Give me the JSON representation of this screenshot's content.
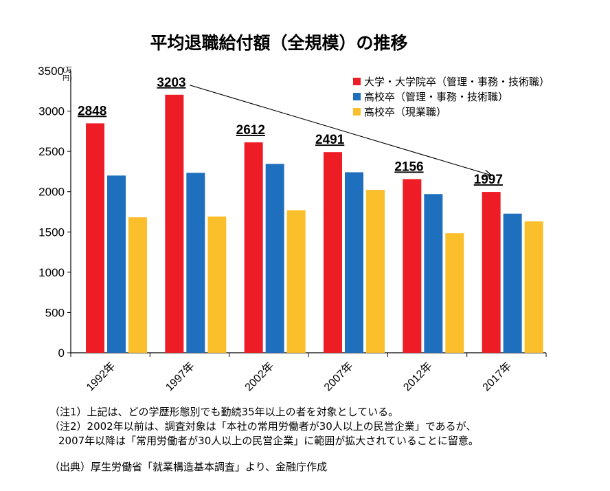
{
  "chart_data": {
    "type": "bar",
    "title": "平均退職給付額（全規模）の推移",
    "unit_label": [
      "(万",
      "円)"
    ],
    "categories": [
      "1992年",
      "1997年",
      "2002年",
      "2007年",
      "2012年",
      "2017年"
    ],
    "series": [
      {
        "name": "大学・大学院卒（管理・事務・技術職）",
        "color": "#ee1c25",
        "values": [
          2848,
          3203,
          2612,
          2491,
          2156,
          1997
        ]
      },
      {
        "name": "高校卒（管理・事務・技術職）",
        "color": "#1f6fbf",
        "values": [
          2200,
          2234,
          2345,
          2241,
          1970,
          1727
        ]
      },
      {
        "name": "高校卒（現業職）",
        "color": "#fbbf2c",
        "values": [
          1682,
          1692,
          1769,
          2022,
          1484,
          1632
        ]
      }
    ],
    "callouts": [
      "2848",
      "3203",
      "2612",
      "2491",
      "2156",
      "1997"
    ],
    "yticks": [
      0,
      500,
      1000,
      1500,
      2000,
      2500,
      3000,
      3500
    ],
    "ylim": [
      0,
      3500
    ],
    "grid": false,
    "legend_position": "top-right"
  },
  "notes": [
    "（注1）上記は、どの学歴形態別でも勤続35年以上の者を対象としている。",
    "（注2）2002年以前は、調査対象は「本社の常用労働者が30人以上の民営企業」であるが、",
    "2007年以降は「常用労働者が30人以上の民営企業」に範囲が拡大されていることに留意。",
    "（出典）厚生労働省「就業構造基本調査」より、金融庁作成"
  ]
}
